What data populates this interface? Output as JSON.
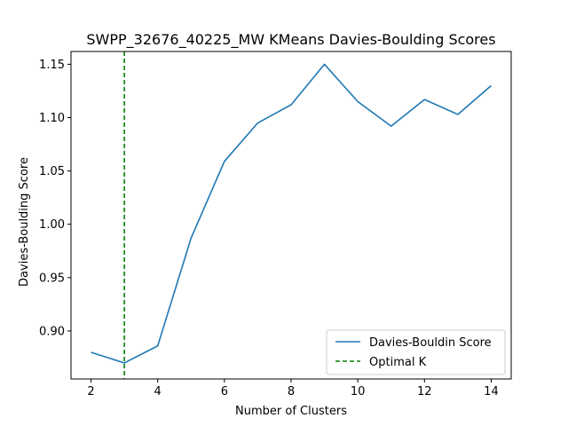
{
  "chart_data": {
    "type": "line",
    "title": "SWPP_32676_40225_MW KMeans Davies-Boulding Scores",
    "xlabel": "Number of Clusters",
    "ylabel": "Davies-Boulding Score",
    "xlim": [
      1.4,
      14.6
    ],
    "ylim": [
      0.855,
      1.162
    ],
    "xticks": [
      2,
      4,
      6,
      8,
      10,
      12,
      14
    ],
    "yticks": [
      0.9,
      0.95,
      1.0,
      1.05,
      1.1,
      1.15
    ],
    "ytick_labels": [
      "0.90",
      "0.95",
      "1.00",
      "1.05",
      "1.10",
      "1.15"
    ],
    "x": [
      2,
      3,
      4,
      5,
      6,
      7,
      8,
      9,
      10,
      11,
      12,
      13,
      14
    ],
    "series": [
      {
        "name": "Davies-Bouldin Score",
        "color": "#1f77b4",
        "values": [
          0.88,
          0.87,
          0.886,
          0.987,
          1.059,
          1.095,
          1.112,
          1.15,
          1.115,
          1.092,
          1.117,
          1.103,
          1.13
        ]
      }
    ],
    "vline": {
      "name": "Optimal K",
      "x": 3,
      "color": "#008000",
      "style": "dashed"
    },
    "legend": {
      "position": "lower-right"
    },
    "grid": false
  }
}
